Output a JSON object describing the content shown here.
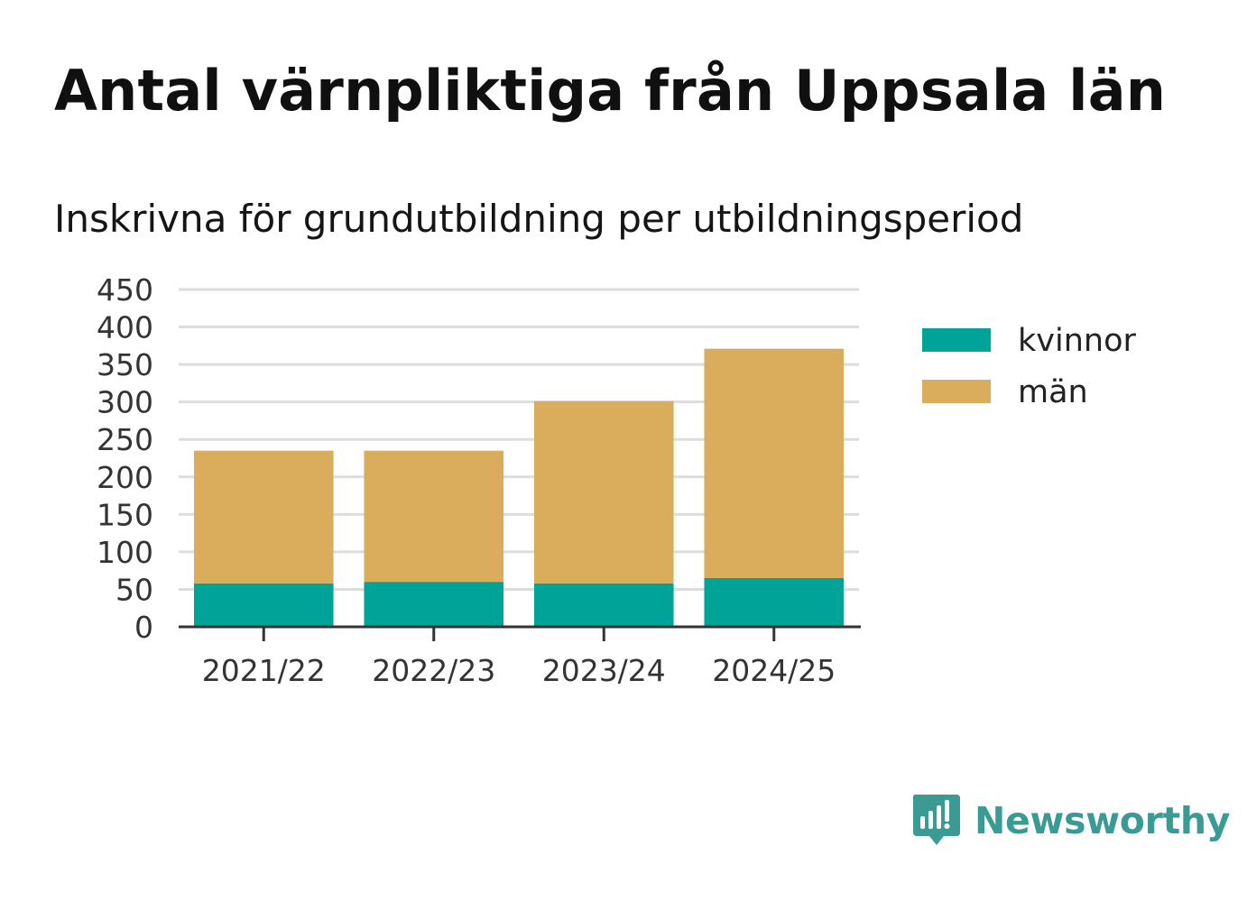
{
  "chart_data": {
    "type": "bar",
    "stacked": true,
    "title": "Antal värnpliktiga från Uppsala län",
    "subtitle": "Inskrivna för grundutbildning per utbildningsperiod",
    "categories": [
      "2021/22",
      "2022/23",
      "2023/24",
      "2024/25"
    ],
    "series": [
      {
        "name": "kvinnor",
        "color": "#00a398",
        "values": [
          58,
          60,
          58,
          65
        ]
      },
      {
        "name": "män",
        "color": "#d9ad5c",
        "values": [
          177,
          175,
          243,
          306
        ]
      }
    ],
    "ylim": [
      0,
      450
    ],
    "yticks": [
      0,
      50,
      100,
      150,
      200,
      250,
      300,
      350,
      400,
      450
    ],
    "xlabel": "",
    "ylabel": "",
    "grid": true,
    "legend": "right"
  },
  "brand": {
    "name": "Newsworthy",
    "color": "#3a9a94"
  }
}
